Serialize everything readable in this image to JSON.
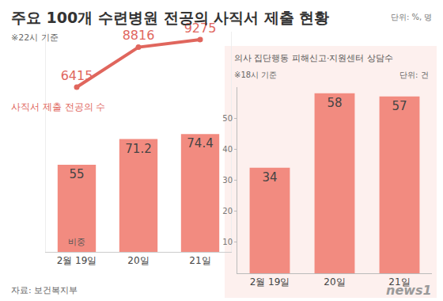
{
  "title": "주요 100개 수련병원 전공의 사직서 제출 현황",
  "unit": "단위: %, 명",
  "source": "자료: 보건복지부",
  "logo": "news1",
  "chart_data": [
    {
      "type": "bar",
      "subtitle": "※22시 기준",
      "categories": [
        "2월 19일",
        "20일",
        "21일"
      ],
      "series": [
        {
          "name": "비중",
          "type": "bar",
          "color": "#f28b80",
          "values": [
            55,
            71.2,
            74.4
          ]
        },
        {
          "name": "사직서 제출 전공의 수",
          "type": "line",
          "axis": "y2",
          "color": "#e0665d",
          "marker": "circle",
          "values": [
            6415,
            8816,
            9275
          ]
        }
      ],
      "ylim": [
        0,
        139
      ],
      "y2lim": [
        -3500,
        9750
      ],
      "tick_labels": "x",
      "data_labels": true,
      "grid": false
    },
    {
      "type": "bar",
      "title": "의사 집단행동 피해신고·지원센터 상담수",
      "subtitle": "※18시 기준",
      "annotations": [
        "단위: 건"
      ],
      "categories": [
        "2월 19일",
        "20일",
        "21일"
      ],
      "values": [
        34,
        58,
        57
      ],
      "color": "#f28b80",
      "ylim": [
        0,
        60
      ],
      "yticks": [
        10,
        20,
        30,
        40,
        50
      ],
      "data_labels": true,
      "grid": false
    }
  ]
}
